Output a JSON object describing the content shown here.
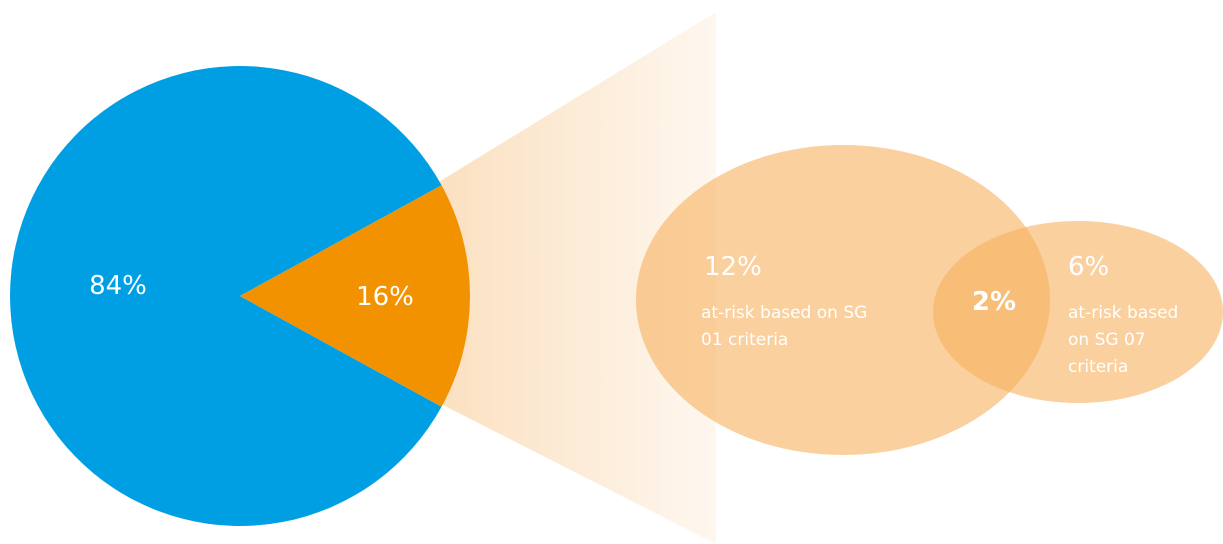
{
  "chart_data": [
    {
      "type": "pie",
      "slices": [
        {
          "label": "84%",
          "value": 84,
          "color": "#009fe3"
        },
        {
          "label": "16%",
          "value": 16,
          "color": "#f39200"
        }
      ]
    },
    {
      "type": "venn",
      "sets": [
        {
          "value": 12,
          "label": "12%",
          "description": [
            "at-risk based on SG",
            "01 criteria"
          ]
        },
        {
          "value": 6,
          "label": "6%",
          "description": [
            "at-risk based",
            "on SG 07",
            "criteria"
          ]
        }
      ],
      "overlap": {
        "value": 2,
        "label": "2%"
      }
    }
  ],
  "colors": {
    "pie_main": "#009fe3",
    "pie_highlight": "#f39200",
    "funnel": "#fbe2c4",
    "venn_fill": "#f7b05e",
    "text": "#ffffff"
  }
}
